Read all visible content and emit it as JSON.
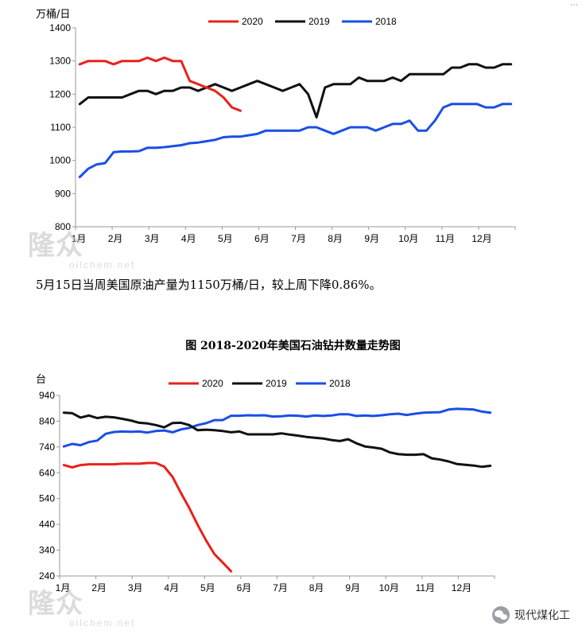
{
  "corner_icon": "ellipsis-icon",
  "charts": [
    {
      "id": "oil_output",
      "unit_label": "万桶/日",
      "caption": "5月15日当周美国原油产量为1150万桶/日，较上周下降0.86%。",
      "watermark": "oilchem.net",
      "watermark_logo": "隆众"
    },
    {
      "id": "rig_count",
      "figure_title": "图 2018-2020年美国石油钻井数量走势图",
      "unit_label": "台",
      "watermark": "oilchem.net",
      "watermark_logo": "隆众"
    }
  ],
  "credit": {
    "icon": "wechat-icon",
    "text": "现代煤化工"
  },
  "colors": {
    "2020": "#e8221c",
    "2019": "#111111",
    "2018": "#1a4fe6",
    "axis": "#9a9a9a"
  },
  "chart_data": [
    {
      "type": "line",
      "title": "",
      "ylabel": "万桶/日",
      "xlabel": "",
      "ylim": [
        800,
        1400
      ],
      "yticks": [
        800,
        900,
        1000,
        1100,
        1200,
        1300,
        1400
      ],
      "months": [
        "1月",
        "2月",
        "3月",
        "4月",
        "5月",
        "6月",
        "7月",
        "8月",
        "9月",
        "10月",
        "11月",
        "12月"
      ],
      "legend": "top-center",
      "grid": false,
      "series": [
        {
          "name": "2020",
          "x": [
            1,
            2,
            3,
            4,
            5,
            6,
            7,
            8,
            9,
            10,
            11,
            12,
            13,
            14,
            15,
            16,
            17,
            18,
            19,
            20
          ],
          "values": [
            1290,
            1300,
            1300,
            1300,
            1290,
            1300,
            1300,
            1300,
            1310,
            1300,
            1310,
            1300,
            1300,
            1240,
            1230,
            1220,
            1210,
            1190,
            1160,
            1150
          ]
        },
        {
          "name": "2019",
          "x": [
            1,
            2,
            3,
            4,
            5,
            6,
            7,
            8,
            9,
            10,
            11,
            12,
            13,
            14,
            15,
            16,
            17,
            18,
            19,
            20,
            21,
            22,
            23,
            24,
            25,
            26,
            27,
            28,
            29,
            30,
            31,
            32,
            33,
            34,
            35,
            36,
            37,
            38,
            39,
            40,
            41,
            42,
            43,
            44,
            45,
            46,
            47,
            48,
            49,
            50,
            51,
            52
          ],
          "values": [
            1170,
            1190,
            1190,
            1190,
            1190,
            1190,
            1200,
            1210,
            1210,
            1200,
            1210,
            1210,
            1220,
            1220,
            1210,
            1220,
            1230,
            1220,
            1210,
            1220,
            1230,
            1240,
            1230,
            1220,
            1210,
            1220,
            1230,
            1200,
            1130,
            1220,
            1230,
            1230,
            1230,
            1250,
            1240,
            1240,
            1240,
            1250,
            1240,
            1260,
            1260,
            1260,
            1260,
            1260,
            1280,
            1280,
            1290,
            1290,
            1280,
            1280,
            1290,
            1290
          ]
        },
        {
          "name": "2018",
          "x": [
            1,
            2,
            3,
            4,
            5,
            6,
            7,
            8,
            9,
            10,
            11,
            12,
            13,
            14,
            15,
            16,
            17,
            18,
            19,
            20,
            21,
            22,
            23,
            24,
            25,
            26,
            27,
            28,
            29,
            30,
            31,
            32,
            33,
            34,
            35,
            36,
            37,
            38,
            39,
            40,
            41,
            42,
            43,
            44,
            45,
            46,
            47,
            48,
            49,
            50,
            51,
            52
          ],
          "values": [
            950,
            975,
            988,
            992,
            1025,
            1027,
            1027,
            1028,
            1038,
            1038,
            1040,
            1043,
            1046,
            1052,
            1054,
            1058,
            1062,
            1070,
            1072,
            1072,
            1076,
            1080,
            1090,
            1090,
            1090,
            1090,
            1090,
            1100,
            1100,
            1090,
            1080,
            1090,
            1100,
            1100,
            1100,
            1090,
            1100,
            1110,
            1110,
            1120,
            1090,
            1090,
            1120,
            1160,
            1170,
            1170,
            1170,
            1170,
            1160,
            1160,
            1170,
            1170
          ]
        }
      ]
    },
    {
      "type": "line",
      "title": "图 2018-2020年美国石油钻井数量走势图",
      "ylabel": "台",
      "xlabel": "",
      "ylim": [
        240,
        940
      ],
      "yticks": [
        240,
        340,
        440,
        540,
        640,
        740,
        840,
        940
      ],
      "months": [
        "1月",
        "2月",
        "3月",
        "4月",
        "5月",
        "6月",
        "7月",
        "8月",
        "9月",
        "10月",
        "11月",
        "12月"
      ],
      "legend": "top-center",
      "grid": false,
      "series": [
        {
          "name": "2020",
          "x": [
            1,
            2,
            3,
            4,
            5,
            6,
            7,
            8,
            9,
            10,
            11,
            12,
            13,
            14,
            15,
            16,
            17,
            18,
            19,
            20,
            21
          ],
          "values": [
            670,
            661,
            670,
            673,
            673,
            673,
            673,
            675,
            675,
            675,
            678,
            678,
            664,
            624,
            562,
            504,
            438,
            378,
            325,
            292,
            258
          ]
        },
        {
          "name": "2019",
          "x": [
            1,
            2,
            3,
            4,
            5,
            6,
            7,
            8,
            9,
            10,
            11,
            12,
            13,
            14,
            15,
            16,
            17,
            18,
            19,
            20,
            21,
            22,
            23,
            24,
            25,
            26,
            27,
            28,
            29,
            30,
            31,
            32,
            33,
            34,
            35,
            36,
            37,
            38,
            39,
            40,
            41,
            42,
            43,
            44,
            45,
            46,
            47,
            48,
            49,
            50,
            51,
            52
          ],
          "values": [
            873,
            871,
            854,
            862,
            852,
            857,
            855,
            849,
            843,
            834,
            831,
            825,
            816,
            833,
            834,
            825,
            805,
            807,
            805,
            802,
            797,
            800,
            789,
            789,
            789,
            789,
            793,
            788,
            784,
            779,
            776,
            773,
            767,
            763,
            770,
            754,
            742,
            738,
            733,
            719,
            712,
            710,
            710,
            712,
            696,
            691,
            684,
            674,
            671,
            668,
            663,
            667
          ]
        },
        {
          "name": "2018",
          "x": [
            1,
            2,
            3,
            4,
            5,
            6,
            7,
            8,
            9,
            10,
            11,
            12,
            13,
            14,
            15,
            16,
            17,
            18,
            19,
            20,
            21,
            22,
            23,
            24,
            25,
            26,
            27,
            28,
            29,
            30,
            31,
            32,
            33,
            34,
            35,
            36,
            37,
            38,
            39,
            40,
            41,
            42,
            43,
            44,
            45,
            46,
            47,
            48,
            49,
            50,
            51,
            52
          ],
          "values": [
            742,
            752,
            747,
            759,
            765,
            791,
            798,
            800,
            799,
            800,
            796,
            802,
            804,
            797,
            808,
            814,
            825,
            832,
            844,
            844,
            861,
            861,
            863,
            862,
            863,
            858,
            859,
            862,
            861,
            858,
            862,
            860,
            862,
            867,
            867,
            860,
            862,
            860,
            863,
            867,
            869,
            864,
            869,
            873,
            874,
            875,
            885,
            888,
            887,
            885,
            877,
            873
          ]
        }
      ]
    }
  ]
}
